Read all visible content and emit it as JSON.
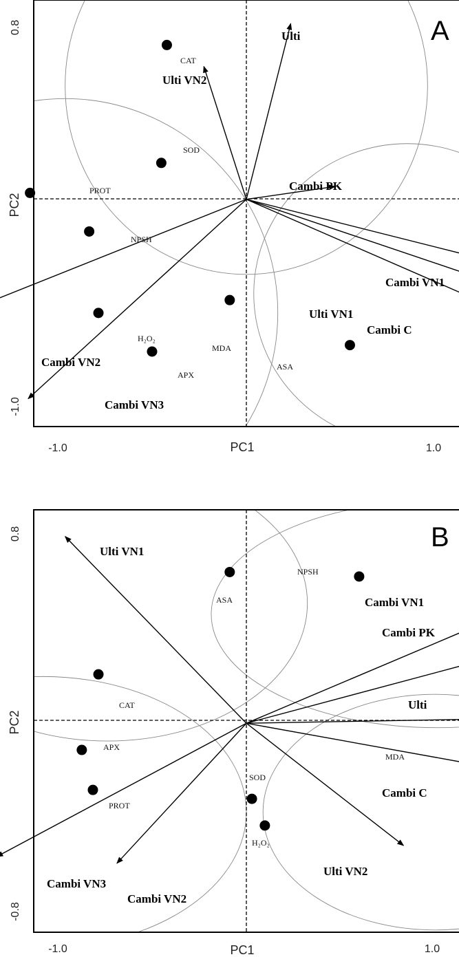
{
  "chart_data": [
    {
      "type": "biplot",
      "panel": "A",
      "xlabel": "PC1",
      "ylabel": "PC2",
      "x_ticks": [
        "-1.0",
        "1.0"
      ],
      "y_ticks": [
        "0.8",
        "-1.0"
      ],
      "xlim": [
        -1.15,
        1.15
      ],
      "ylim": [
        -1.06,
        0.93
      ],
      "arrows": [
        {
          "label": "Ulti",
          "x": 0.24,
          "y": 0.82
        },
        {
          "label": "Ulti VN2",
          "x": -0.23,
          "y": 0.62
        },
        {
          "label": "Cambi PK",
          "x": 0.48,
          "y": 0.06
        },
        {
          "label": "Cambi VN1",
          "x": 1.38,
          "y": -0.3
        },
        {
          "label": "Ulti VN1",
          "x": 1.25,
          "y": -0.47
        },
        {
          "label": "Cambi C",
          "x": 1.82,
          "y": -0.53
        },
        {
          "label": "Cambi VN2",
          "x": -1.8,
          "y": -0.62
        },
        {
          "label": "Cambi VN3",
          "x": -1.18,
          "y": -0.93
        }
      ],
      "points": [
        {
          "label": "CAT",
          "x": -0.43,
          "y": 0.72
        },
        {
          "label": "SOD",
          "x": -0.46,
          "y": 0.17
        },
        {
          "label": "PROT",
          "x": -1.17,
          "y": 0.03
        },
        {
          "label": "NPSH",
          "x": -0.85,
          "y": -0.15
        },
        {
          "label": "H₂O₂",
          "x": -0.8,
          "y": -0.53
        },
        {
          "label": "MDA",
          "x": -0.09,
          "y": -0.47
        },
        {
          "label": "APX",
          "x": -0.51,
          "y": -0.71
        },
        {
          "label": "ASA",
          "x": 0.56,
          "y": -0.68
        }
      ],
      "clusters": [
        {
          "cx": 0.0,
          "cy": 0.53,
          "rx": 0.98,
          "ry": 0.88
        },
        {
          "cx": -0.98,
          "cy": -0.53,
          "rx": 1.15,
          "ry": 1.0
        },
        {
          "cx": 0.87,
          "cy": -0.44,
          "rx": 0.83,
          "ry": 0.7
        }
      ]
    },
    {
      "type": "biplot",
      "panel": "B",
      "xlabel": "PC1",
      "ylabel": "PC2",
      "x_ticks": [
        "-1.0",
        "1.0"
      ],
      "y_ticks": [
        "0.8",
        "-0.8"
      ],
      "xlim": [
        -1.15,
        1.15
      ],
      "ylim": [
        -0.94,
        0.96
      ],
      "arrows": [
        {
          "label": "Ulti VN1",
          "x": -0.98,
          "y": 0.84
        },
        {
          "label": "Cambi VN1",
          "x": 1.76,
          "y": 0.62
        },
        {
          "label": "Cambi PK",
          "x": 2.16,
          "y": 0.48
        },
        {
          "label": "Ulti",
          "x": 1.36,
          "y": 0.02
        },
        {
          "label": "Cambi C",
          "x": 1.8,
          "y": -0.27
        },
        {
          "label": "Ulti VN2",
          "x": 0.85,
          "y": -0.55
        },
        {
          "label": "Cambi VN3",
          "x": -1.35,
          "y": -0.6
        },
        {
          "label": "Cambi VN2",
          "x": -0.7,
          "y": -0.63
        }
      ],
      "points": [
        {
          "label": "NPSH",
          "x": 0.61,
          "y": 0.66
        },
        {
          "label": "ASA",
          "x": -0.09,
          "y": 0.68
        },
        {
          "label": "CAT",
          "x": -0.8,
          "y": 0.22
        },
        {
          "label": "APX",
          "x": -0.89,
          "y": -0.12
        },
        {
          "label": "MDA",
          "x": 1.43,
          "y": -0.13
        },
        {
          "label": "SOD",
          "x": 0.03,
          "y": -0.34
        },
        {
          "label": "PROT",
          "x": -0.83,
          "y": -0.3
        },
        {
          "label": "H₂O₂",
          "x": 0.1,
          "y": -0.46
        }
      ],
      "clusters": [
        {
          "cx": -0.75,
          "cy": 0.54,
          "rx": 1.08,
          "ry": 0.62
        },
        {
          "cx": 1.03,
          "cy": 0.49,
          "rx": 1.22,
          "ry": 0.51
        },
        {
          "cx": -1.1,
          "cy": -0.4,
          "rx": 1.1,
          "ry": 0.61
        },
        {
          "cx": 1.02,
          "cy": -0.4,
          "rx": 0.93,
          "ry": 0.53
        }
      ]
    }
  ]
}
